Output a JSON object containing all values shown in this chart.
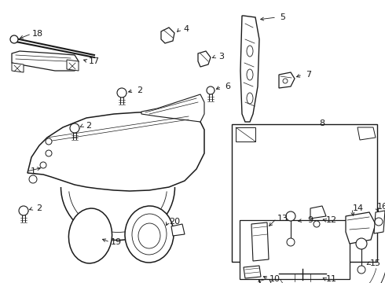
{
  "bg_color": "#ffffff",
  "line_color": "#1a1a1a",
  "label_fontsize": 8,
  "figsize": [
    4.9,
    3.6
  ],
  "dpi": 100
}
